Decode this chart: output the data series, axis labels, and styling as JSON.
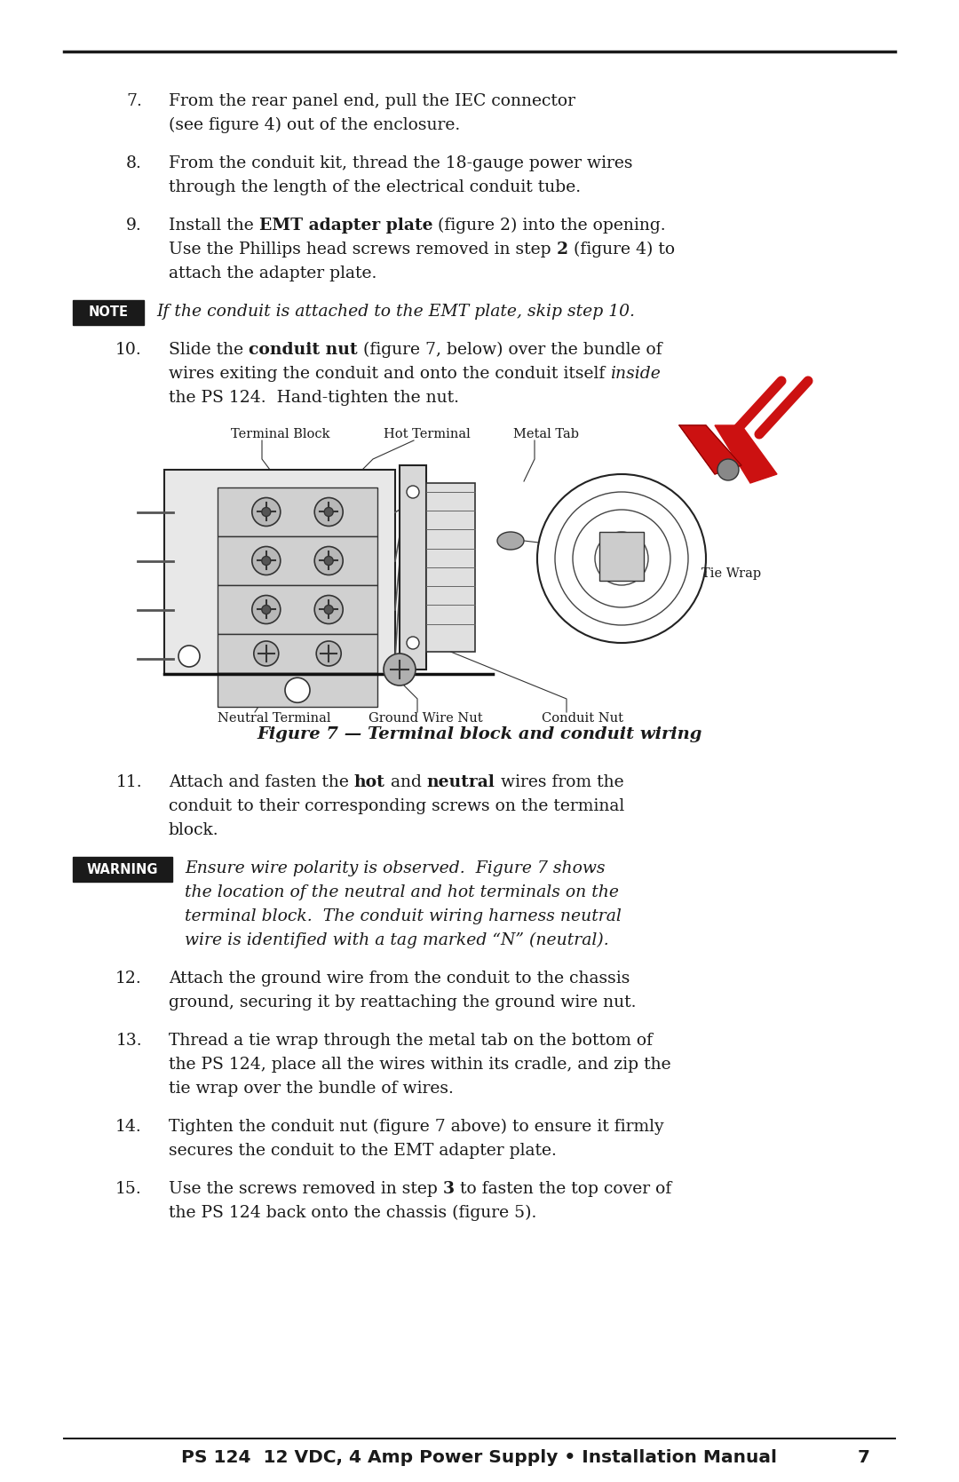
{
  "bg_color": "#ffffff",
  "text_color": "#1a1a1a",
  "top_rule_color": "#1a1a1a",
  "note_label": "NOTE",
  "warning_label": "WARNING",
  "fig_caption": "Figure 7 — Terminal block and conduit wiring",
  "diagram_labels": {
    "terminal_block": "Terminal Block",
    "hot_terminal": "Hot Terminal",
    "metal_tab": "Metal Tab",
    "tie_wrap": "Tie Wrap",
    "neutral_terminal": "Neutral Terminal",
    "ground_wire_nut": "Ground Wire Nut",
    "conduit_nut": "Conduit Nut"
  },
  "footer_text": "PS 124  12 VDC, 4 Amp Power Supply • Installation Manual",
  "footer_page": "7",
  "font_size": 13.5,
  "label_font_size": 10.5,
  "footer_font_size": 14.5,
  "caption_font_size": 14.0
}
